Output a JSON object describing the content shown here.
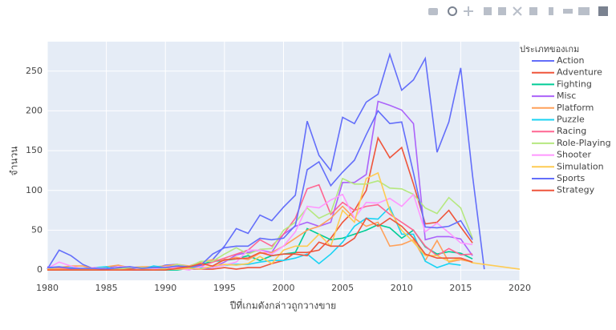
{
  "chart_data": {
    "type": "line",
    "x_label": "ปีที่เกมดังกล่าวถูกวางขาย",
    "y_label": "จำนวน",
    "legend_title": "ประเภทของเกม",
    "xlim": [
      1980,
      2020
    ],
    "xticks": [
      1980,
      1985,
      1990,
      1995,
      2000,
      2005,
      2010,
      2015,
      2020
    ],
    "ylim": [
      -13,
      287
    ],
    "yticks": [
      0,
      50,
      100,
      150,
      200,
      250
    ],
    "grid": true,
    "legend": "right",
    "series": [
      {
        "name": "Action",
        "color": "#636efa",
        "x": [
          1980,
          1981,
          1982,
          1983,
          1984,
          1985,
          1986,
          1987,
          1988,
          1989,
          1990,
          1991,
          1992,
          1993,
          1994,
          1995,
          1996,
          1997,
          1998,
          1999,
          2000,
          2001,
          2002,
          2003,
          2004,
          2005,
          2006,
          2007,
          2008,
          2009,
          2010,
          2011,
          2012,
          2013,
          2014,
          2015,
          2016,
          2017
        ],
        "values": [
          1,
          25,
          18,
          7,
          1,
          2,
          6,
          2,
          2,
          2,
          6,
          7,
          2,
          4,
          13,
          30,
          52,
          46,
          69,
          62,
          79,
          94,
          187,
          144,
          125,
          192,
          184,
          211,
          221,
          271,
          226,
          239,
          266,
          148,
          186,
          254,
          119,
          1
        ]
      },
      {
        "name": "Adventure",
        "color": "#EF553B",
        "x": [
          1980,
          1981,
          1982,
          1983,
          1984,
          1985,
          1986,
          1987,
          1988,
          1989,
          1990,
          1991,
          1992,
          1993,
          1994,
          1995,
          1996,
          1997,
          1998,
          1999,
          2000,
          2001,
          2002,
          2003,
          2004,
          2005,
          2006,
          2007,
          2008,
          2009,
          2010,
          2011,
          2012,
          2013,
          2014,
          2015,
          2016
        ],
        "values": [
          0,
          0,
          1,
          1,
          0,
          0,
          2,
          1,
          0,
          1,
          0,
          2,
          1,
          1,
          1,
          3,
          1,
          3,
          3,
          8,
          12,
          22,
          22,
          25,
          40,
          60,
          75,
          100,
          166,
          141,
          154,
          108,
          58,
          60,
          75,
          54,
          34
        ]
      },
      {
        "name": "Fighting",
        "color": "#00cc96",
        "x": [
          1980,
          1981,
          1982,
          1983,
          1984,
          1985,
          1986,
          1987,
          1988,
          1989,
          1990,
          1991,
          1992,
          1993,
          1994,
          1995,
          1996,
          1997,
          1998,
          1999,
          2000,
          2001,
          2002,
          2003,
          2004,
          2005,
          2006,
          2007,
          2008,
          2009,
          2010,
          2011,
          2012,
          2013,
          2014,
          2015,
          2016
        ],
        "values": [
          1,
          0,
          0,
          0,
          0,
          1,
          0,
          0,
          0,
          0,
          0,
          0,
          2,
          7,
          11,
          12,
          14,
          18,
          12,
          18,
          20,
          22,
          52,
          45,
          38,
          40,
          45,
          50,
          57,
          53,
          40,
          50,
          29,
          20,
          23,
          21,
          14
        ]
      },
      {
        "name": "Misc",
        "color": "#ab63fa",
        "x": [
          1980,
          1981,
          1982,
          1983,
          1984,
          1985,
          1986,
          1987,
          1988,
          1989,
          1990,
          1991,
          1992,
          1993,
          1994,
          1995,
          1996,
          1997,
          1998,
          1999,
          2000,
          2001,
          2002,
          2003,
          2004,
          2005,
          2006,
          2007,
          2008,
          2009,
          2010,
          2011,
          2012,
          2013,
          2014,
          2015,
          2016
        ],
        "values": [
          4,
          0,
          1,
          1,
          1,
          1,
          0,
          0,
          0,
          1,
          1,
          1,
          1,
          1,
          3,
          10,
          19,
          22,
          25,
          22,
          45,
          55,
          60,
          55,
          60,
          110,
          110,
          120,
          212,
          207,
          201,
          184,
          38,
          42,
          42,
          39,
          18
        ]
      },
      {
        "name": "Platform",
        "color": "#FFA15A",
        "x": [
          1980,
          1981,
          1982,
          1983,
          1984,
          1985,
          1986,
          1987,
          1988,
          1989,
          1990,
          1991,
          1992,
          1993,
          1994,
          1995,
          1996,
          1997,
          1998,
          1999,
          2000,
          2001,
          2002,
          2003,
          2004,
          2005,
          2006,
          2007,
          2008,
          2009,
          2010,
          2011,
          2012,
          2013,
          2014,
          2015,
          2016
        ],
        "values": [
          0,
          3,
          5,
          5,
          1,
          4,
          6,
          3,
          4,
          4,
          5,
          7,
          5,
          10,
          13,
          12,
          16,
          13,
          21,
          22,
          30,
          40,
          50,
          55,
          65,
          80,
          65,
          55,
          60,
          30,
          32,
          38,
          12,
          37,
          10,
          13,
          10
        ]
      },
      {
        "name": "Puzzle",
        "color": "#19d3f3",
        "x": [
          1980,
          1981,
          1982,
          1983,
          1984,
          1985,
          1986,
          1987,
          1988,
          1989,
          1990,
          1991,
          1992,
          1993,
          1994,
          1995,
          1996,
          1997,
          1998,
          1999,
          2000,
          2001,
          2002,
          2003,
          2004,
          2005,
          2006,
          2007,
          2008,
          2009,
          2010,
          2011,
          2012,
          2013,
          2014,
          2015
        ],
        "values": [
          2,
          2,
          3,
          1,
          3,
          4,
          0,
          0,
          1,
          5,
          3,
          2,
          4,
          3,
          3,
          6,
          7,
          7,
          10,
          12,
          12,
          15,
          20,
          8,
          20,
          35,
          55,
          65,
          64,
          79,
          45,
          45,
          11,
          3,
          8,
          6
        ]
      },
      {
        "name": "Racing",
        "color": "#FF6692",
        "x": [
          1980,
          1981,
          1982,
          1983,
          1984,
          1985,
          1986,
          1987,
          1988,
          1989,
          1990,
          1991,
          1992,
          1993,
          1994,
          1995,
          1996,
          1997,
          1998,
          1999,
          2000,
          2001,
          2002,
          2003,
          2004,
          2005,
          2006,
          2007,
          2008,
          2009,
          2010,
          2011,
          2012,
          2013,
          2014,
          2015,
          2016
        ],
        "values": [
          1,
          2,
          2,
          1,
          3,
          0,
          1,
          0,
          1,
          0,
          2,
          3,
          4,
          5,
          10,
          15,
          20,
          25,
          38,
          30,
          45,
          65,
          102,
          107,
          70,
          85,
          75,
          80,
          82,
          70,
          60,
          50,
          30,
          18,
          27,
          19,
          20
        ]
      },
      {
        "name": "Role-Playing",
        "color": "#B6E880",
        "x": [
          1980,
          1981,
          1982,
          1983,
          1984,
          1985,
          1986,
          1987,
          1988,
          1989,
          1990,
          1991,
          1992,
          1993,
          1994,
          1995,
          1996,
          1997,
          1998,
          1999,
          2000,
          2001,
          2002,
          2003,
          2004,
          2005,
          2006,
          2007,
          2008,
          2009,
          2010,
          2011,
          2012,
          2013,
          2014,
          2015,
          2016
        ],
        "values": [
          0,
          0,
          0,
          0,
          0,
          0,
          1,
          3,
          3,
          2,
          2,
          7,
          4,
          11,
          11,
          20,
          28,
          20,
          26,
          27,
          50,
          60,
          78,
          65,
          72,
          115,
          108,
          108,
          112,
          103,
          102,
          95,
          78,
          71,
          91,
          78,
          40
        ]
      },
      {
        "name": "Shooter",
        "color": "#FF97FF",
        "x": [
          1980,
          1981,
          1982,
          1983,
          1984,
          1985,
          1986,
          1987,
          1988,
          1989,
          1990,
          1991,
          1992,
          1993,
          1994,
          1995,
          1996,
          1997,
          1998,
          1999,
          2000,
          2001,
          2002,
          2003,
          2004,
          2005,
          2006,
          2007,
          2008,
          2009,
          2010,
          2011,
          2012,
          2013,
          2014,
          2015,
          2016
        ],
        "values": [
          2,
          10,
          5,
          1,
          3,
          1,
          4,
          4,
          1,
          1,
          4,
          2,
          0,
          4,
          3,
          6,
          10,
          25,
          25,
          20,
          30,
          48,
          80,
          78,
          88,
          95,
          65,
          85,
          84,
          90,
          80,
          95,
          48,
          59,
          47,
          34,
          32
        ]
      },
      {
        "name": "Simulation",
        "color": "#FECB52",
        "x": [
          1980,
          1981,
          1982,
          1983,
          1984,
          1985,
          1986,
          1987,
          1988,
          1989,
          1990,
          1991,
          1992,
          1993,
          1994,
          1995,
          1996,
          1997,
          1998,
          1999,
          2000,
          2001,
          2002,
          2003,
          2004,
          2005,
          2006,
          2007,
          2008,
          2009,
          2010,
          2011,
          2012,
          2013,
          2014,
          2015,
          2016,
          2020
        ],
        "values": [
          1,
          1,
          0,
          1,
          1,
          0,
          0,
          0,
          1,
          0,
          1,
          1,
          2,
          1,
          5,
          7,
          6,
          8,
          17,
          8,
          25,
          30,
          30,
          45,
          30,
          75,
          60,
          115,
          122,
          75,
          50,
          35,
          18,
          18,
          11,
          15,
          9,
          1
        ]
      },
      {
        "name": "Sports",
        "color": "#636efa",
        "x": [
          1980,
          1981,
          1982,
          1983,
          1984,
          1985,
          1986,
          1987,
          1988,
          1989,
          1990,
          1991,
          1992,
          1993,
          1994,
          1995,
          1996,
          1997,
          1998,
          1999,
          2000,
          2001,
          2002,
          2003,
          2004,
          2005,
          2006,
          2007,
          2008,
          2009,
          2010,
          2011,
          2012,
          2013,
          2014,
          2015,
          2016
        ],
        "values": [
          3,
          4,
          2,
          2,
          2,
          1,
          3,
          4,
          2,
          3,
          3,
          5,
          4,
          6,
          20,
          28,
          30,
          30,
          40,
          38,
          40,
          56,
          126,
          136,
          106,
          123,
          138,
          170,
          200,
          184,
          186,
          122,
          54,
          53,
          55,
          62,
          38
        ]
      },
      {
        "name": "Strategy",
        "color": "#EF553B",
        "x": [
          1980,
          1981,
          1982,
          1983,
          1984,
          1985,
          1986,
          1987,
          1988,
          1989,
          1990,
          1991,
          1992,
          1993,
          1994,
          1995,
          1996,
          1997,
          1998,
          1999,
          2000,
          2001,
          2002,
          2003,
          2004,
          2005,
          2006,
          2007,
          2008,
          2009,
          2010,
          2011,
          2012,
          2013,
          2014,
          2015,
          2016
        ],
        "values": [
          0,
          0,
          0,
          0,
          0,
          0,
          0,
          0,
          0,
          0,
          0,
          2,
          4,
          8,
          5,
          13,
          14,
          15,
          22,
          18,
          20,
          20,
          18,
          35,
          30,
          30,
          40,
          65,
          55,
          65,
          55,
          40,
          20,
          15,
          15,
          15,
          10
        ]
      }
    ]
  }
}
